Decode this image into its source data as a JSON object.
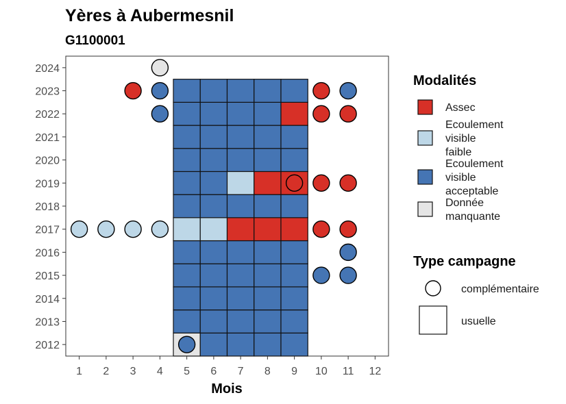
{
  "chart_data": {
    "type": "heatmap",
    "title": "Yères à Aubermesnil",
    "subtitle": "G1100001",
    "xlabel": "Mois",
    "ylabel": "",
    "x_ticks": [
      1,
      2,
      3,
      4,
      5,
      6,
      7,
      8,
      9,
      10,
      11,
      12
    ],
    "y_ticks": [
      2012,
      2013,
      2014,
      2015,
      2016,
      2017,
      2018,
      2019,
      2020,
      2021,
      2022,
      2023,
      2024
    ],
    "xlim": [
      0.5,
      12.5
    ],
    "ylim": [
      2011.5,
      2024.5
    ],
    "colors": {
      "assec": "#d73027",
      "faible": "#bdd7e7",
      "acceptable": "#4575b4",
      "manquante": "#e5e5e5"
    },
    "legend_modalites": {
      "title": "Modalités",
      "items": [
        {
          "key": "assec",
          "lines": [
            "Assec"
          ]
        },
        {
          "key": "faible",
          "lines": [
            "Ecoulement",
            "visible",
            "faible"
          ]
        },
        {
          "key": "acceptable",
          "lines": [
            "Ecoulement",
            "visible",
            "acceptable"
          ]
        },
        {
          "key": "manquante",
          "lines": [
            "Donnée",
            "manquante"
          ]
        }
      ]
    },
    "legend_campagne": {
      "title": "Type campagne",
      "items": [
        {
          "shape": "circle",
          "label": "complémentaire"
        },
        {
          "shape": "square",
          "label": "usuelle"
        }
      ]
    },
    "usuelle": [
      {
        "year": 2012,
        "values": [
          "manquante",
          "acceptable",
          "acceptable",
          "acceptable",
          "acceptable"
        ]
      },
      {
        "year": 2013,
        "values": [
          "acceptable",
          "acceptable",
          "acceptable",
          "acceptable",
          "acceptable"
        ]
      },
      {
        "year": 2014,
        "values": [
          "acceptable",
          "acceptable",
          "acceptable",
          "acceptable",
          "acceptable"
        ]
      },
      {
        "year": 2015,
        "values": [
          "acceptable",
          "acceptable",
          "acceptable",
          "acceptable",
          "acceptable"
        ]
      },
      {
        "year": 2016,
        "values": [
          "acceptable",
          "acceptable",
          "acceptable",
          "acceptable",
          "acceptable"
        ]
      },
      {
        "year": 2017,
        "values": [
          "faible",
          "faible",
          "assec",
          "assec",
          "assec"
        ]
      },
      {
        "year": 2018,
        "values": [
          "acceptable",
          "acceptable",
          "acceptable",
          "acceptable",
          "acceptable"
        ]
      },
      {
        "year": 2019,
        "values": [
          "acceptable",
          "acceptable",
          "faible",
          "assec",
          "assec"
        ]
      },
      {
        "year": 2020,
        "values": [
          "acceptable",
          "acceptable",
          "acceptable",
          "acceptable",
          "acceptable"
        ]
      },
      {
        "year": 2021,
        "values": [
          "acceptable",
          "acceptable",
          "acceptable",
          "acceptable",
          "acceptable"
        ]
      },
      {
        "year": 2022,
        "values": [
          "acceptable",
          "acceptable",
          "acceptable",
          "acceptable",
          "assec"
        ]
      },
      {
        "year": 2023,
        "values": [
          "acceptable",
          "acceptable",
          "acceptable",
          "acceptable",
          "acceptable"
        ]
      }
    ],
    "usuelle_months": [
      5,
      6,
      7,
      8,
      9
    ],
    "complementaire": [
      {
        "year": 2024,
        "month": 4,
        "value": "manquante"
      },
      {
        "year": 2023,
        "month": 3,
        "value": "assec"
      },
      {
        "year": 2023,
        "month": 4,
        "value": "acceptable"
      },
      {
        "year": 2023,
        "month": 10,
        "value": "assec"
      },
      {
        "year": 2023,
        "month": 11,
        "value": "acceptable"
      },
      {
        "year": 2022,
        "month": 4,
        "value": "acceptable"
      },
      {
        "year": 2022,
        "month": 10,
        "value": "assec"
      },
      {
        "year": 2022,
        "month": 11,
        "value": "assec"
      },
      {
        "year": 2019,
        "month": 9,
        "value": "assec"
      },
      {
        "year": 2019,
        "month": 10,
        "value": "assec"
      },
      {
        "year": 2019,
        "month": 11,
        "value": "assec"
      },
      {
        "year": 2017,
        "month": 1,
        "value": "faible"
      },
      {
        "year": 2017,
        "month": 2,
        "value": "faible"
      },
      {
        "year": 2017,
        "month": 3,
        "value": "faible"
      },
      {
        "year": 2017,
        "month": 4,
        "value": "faible"
      },
      {
        "year": 2017,
        "month": 10,
        "value": "assec"
      },
      {
        "year": 2017,
        "month": 11,
        "value": "assec"
      },
      {
        "year": 2016,
        "month": 11,
        "value": "acceptable"
      },
      {
        "year": 2015,
        "month": 10,
        "value": "acceptable"
      },
      {
        "year": 2015,
        "month": 11,
        "value": "acceptable"
      },
      {
        "year": 2012,
        "month": 5,
        "value": "acceptable"
      }
    ]
  }
}
